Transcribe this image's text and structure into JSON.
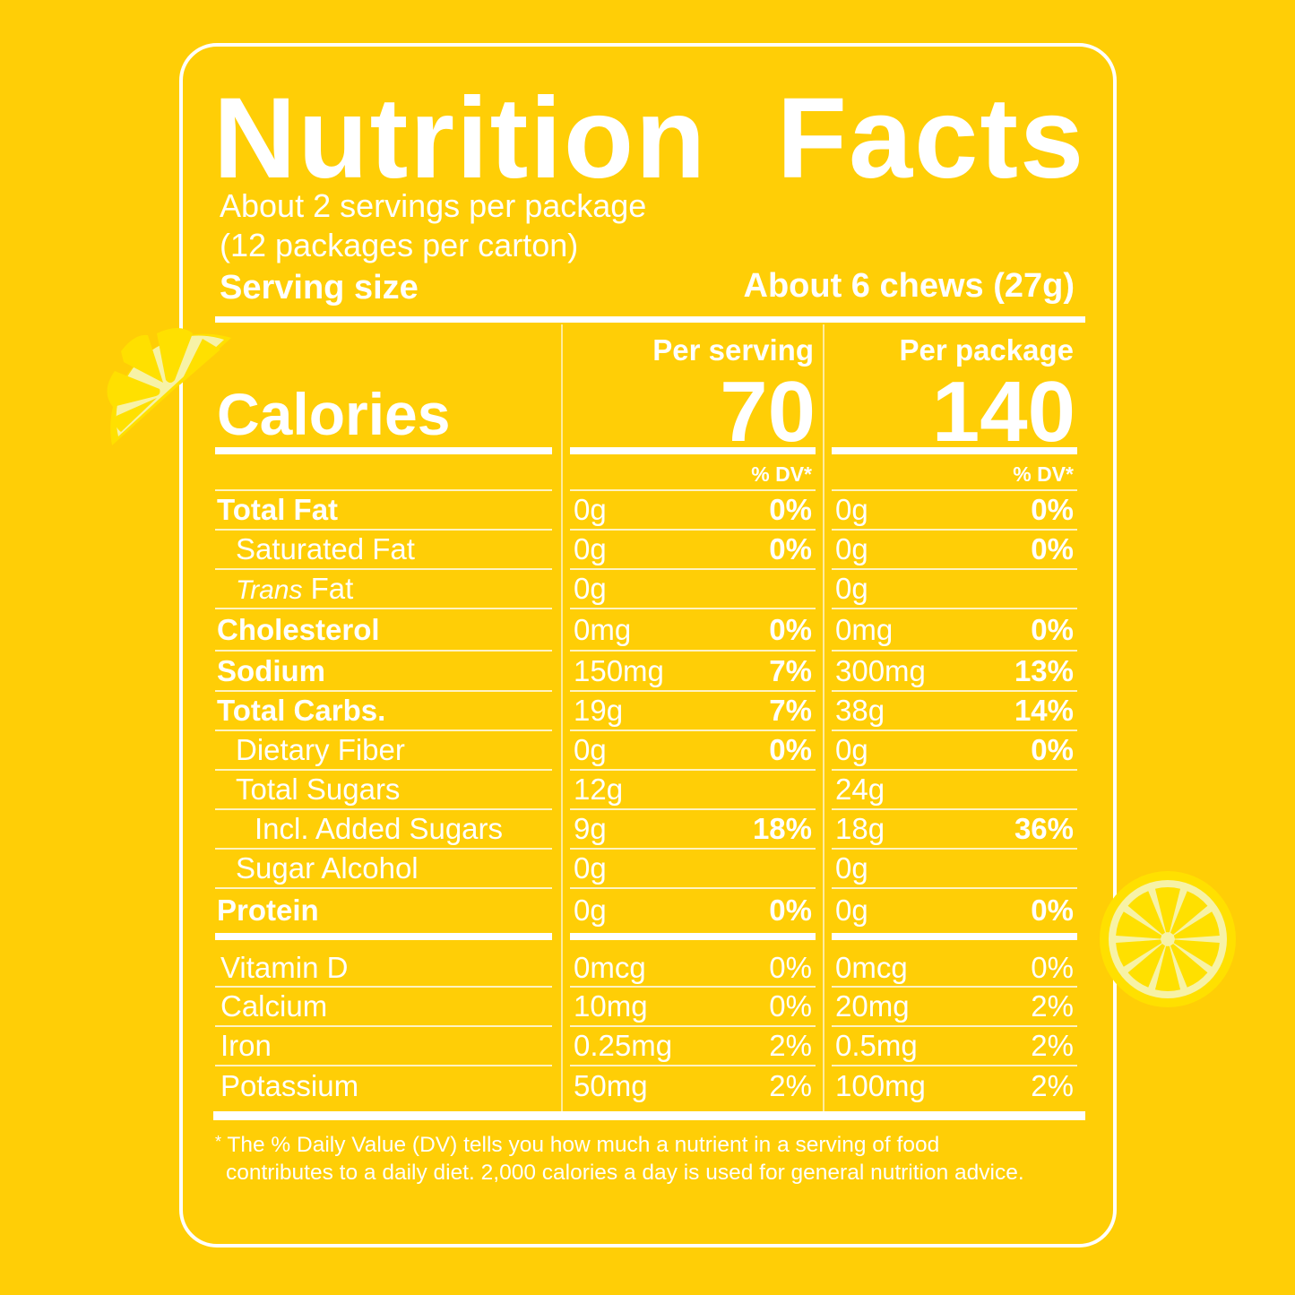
{
  "title": "Nutrition Facts",
  "servings_per_package": "About 2 servings per package",
  "packages_per_carton": "(12 packages per carton)",
  "serving_size_label": "Serving size",
  "serving_size_value": "About 6 chews (27g)",
  "calories_label": "Calories",
  "columns": [
    {
      "header": "Per serving",
      "calories": "70",
      "dv_header": "% DV*"
    },
    {
      "header": "Per package",
      "calories": "140",
      "dv_header": "% DV*"
    }
  ],
  "nutrients": [
    {
      "label": "Total Fat",
      "bold": true,
      "indent": 0,
      "serving": {
        "amount": "0g",
        "dv": "0%"
      },
      "package": {
        "amount": "0g",
        "dv": "0%"
      }
    },
    {
      "label": "Saturated Fat",
      "bold": false,
      "indent": 1,
      "serving": {
        "amount": "0g",
        "dv": "0%"
      },
      "package": {
        "amount": "0g",
        "dv": "0%"
      }
    },
    {
      "label_italic": "Trans",
      "label": " Fat",
      "bold": false,
      "indent": 1,
      "serving": {
        "amount": "0g",
        "dv": ""
      },
      "package": {
        "amount": "0g",
        "dv": ""
      }
    },
    {
      "label": "Cholesterol",
      "bold": true,
      "indent": 0,
      "serving": {
        "amount": "0mg",
        "dv": "0%"
      },
      "package": {
        "amount": "0mg",
        "dv": "0%"
      }
    },
    {
      "label": "Sodium",
      "bold": true,
      "indent": 0,
      "serving": {
        "amount": "150mg",
        "dv": "7%"
      },
      "package": {
        "amount": "300mg",
        "dv": "13%"
      }
    },
    {
      "label": "Total Carbs.",
      "bold": true,
      "indent": 0,
      "serving": {
        "amount": "19g",
        "dv": "7%"
      },
      "package": {
        "amount": "38g",
        "dv": "14%"
      }
    },
    {
      "label": "Dietary Fiber",
      "bold": false,
      "indent": 1,
      "serving": {
        "amount": "0g",
        "dv": "0%"
      },
      "package": {
        "amount": "0g",
        "dv": "0%"
      }
    },
    {
      "label": "Total Sugars",
      "bold": false,
      "indent": 1,
      "serving": {
        "amount": "12g",
        "dv": ""
      },
      "package": {
        "amount": "24g",
        "dv": ""
      }
    },
    {
      "label": "Incl. Added Sugars",
      "bold": false,
      "indent": 2,
      "serving": {
        "amount": "9g",
        "dv": "18%"
      },
      "package": {
        "amount": "18g",
        "dv": "36%"
      }
    },
    {
      "label": "Sugar Alcohol",
      "bold": false,
      "indent": 1,
      "serving": {
        "amount": "0g",
        "dv": ""
      },
      "package": {
        "amount": "0g",
        "dv": ""
      }
    },
    {
      "label": "Protein",
      "bold": true,
      "indent": 0,
      "serving": {
        "amount": "0g",
        "dv": "0%"
      },
      "package": {
        "amount": "0g",
        "dv": "0%"
      }
    }
  ],
  "vitamins": [
    {
      "label": "Vitamin D",
      "serving": {
        "amount": "0mcg",
        "dv": "0%"
      },
      "package": {
        "amount": "0mcg",
        "dv": "0%"
      }
    },
    {
      "label": "Calcium",
      "serving": {
        "amount": "10mg",
        "dv": "0%"
      },
      "package": {
        "amount": "20mg",
        "dv": "2%"
      }
    },
    {
      "label": "Iron",
      "serving": {
        "amount": "0.25mg",
        "dv": "2%"
      },
      "package": {
        "amount": "0.5mg",
        "dv": "2%"
      }
    },
    {
      "label": "Potassium",
      "serving": {
        "amount": "50mg",
        "dv": "2%"
      },
      "package": {
        "amount": "100mg",
        "dv": "2%"
      }
    }
  ],
  "footnote": {
    "asterisk": "*",
    "line1": "The % Daily Value (DV) tells you how much a nutrient in a serving of food",
    "line2": "contributes to a daily diet. 2,000 calories a day is used for general nutrition advice."
  },
  "colors": {
    "background": "#FFCE06",
    "text": "#FFFFFF",
    "lemon": "#FFE000",
    "lemon_pith": "#F7F2A6"
  },
  "decorations": [
    "lemon-wedge-icon",
    "lemon-slice-icon"
  ]
}
